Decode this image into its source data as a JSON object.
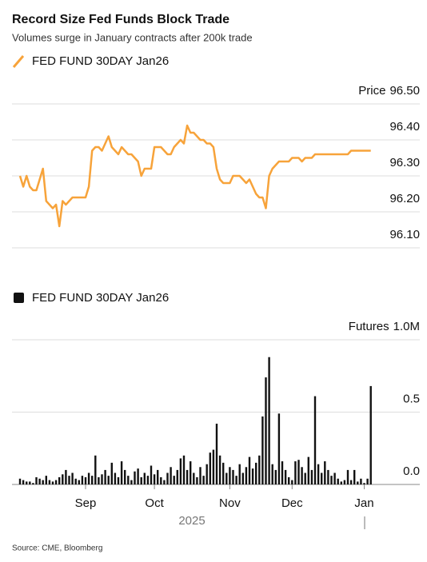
{
  "title": "Record Size Fed Funds Block Trade",
  "subtitle": "Volumes surge in January contracts after 200k trade",
  "source": "Source: CME, Bloomberg",
  "year_label": "2025",
  "chart_data": [
    {
      "type": "line",
      "y_label": "Price",
      "ylim": [
        96.1,
        96.5
      ],
      "yticks": [
        {
          "value": 96.1,
          "label": "96.10"
        },
        {
          "value": 96.2,
          "label": "96.20"
        },
        {
          "value": 96.3,
          "label": "96.30"
        },
        {
          "value": 96.4,
          "label": "96.40"
        },
        {
          "value": 96.5,
          "label": "96.50"
        }
      ],
      "grid": true,
      "series": [
        {
          "name": "FED FUND 30DAY Jan26",
          "color": "#f7a33a",
          "values": [
            96.3,
            96.27,
            96.3,
            96.27,
            96.26,
            96.26,
            96.29,
            96.32,
            96.23,
            96.22,
            96.21,
            96.22,
            96.16,
            96.23,
            96.22,
            96.23,
            96.24,
            96.24,
            96.24,
            96.24,
            96.24,
            96.27,
            96.37,
            96.38,
            96.38,
            96.37,
            96.39,
            96.41,
            96.38,
            96.37,
            96.36,
            96.38,
            96.37,
            96.36,
            96.36,
            96.35,
            96.34,
            96.3,
            96.32,
            96.32,
            96.32,
            96.38,
            96.38,
            96.38,
            96.37,
            96.36,
            96.36,
            96.38,
            96.39,
            96.4,
            96.39,
            96.44,
            96.42,
            96.42,
            96.41,
            96.4,
            96.4,
            96.39,
            96.39,
            96.38,
            96.32,
            96.29,
            96.28,
            96.28,
            96.28,
            96.3,
            96.3,
            96.3,
            96.29,
            96.28,
            96.29,
            96.27,
            96.25,
            96.24,
            96.24,
            96.21,
            96.3,
            96.32,
            96.33,
            96.34,
            96.34,
            96.34,
            96.34,
            96.35,
            96.35,
            96.35,
            96.34,
            96.35,
            96.35,
            96.35,
            96.36,
            96.36,
            96.36,
            96.36,
            96.36,
            96.36,
            96.36,
            96.36,
            96.36,
            96.36,
            96.36,
            96.37,
            96.37,
            96.37,
            96.37,
            96.37,
            96.37,
            96.37
          ]
        }
      ]
    },
    {
      "type": "bar",
      "y_label": "Futures",
      "ylim": [
        0,
        1
      ],
      "yticks": [
        {
          "value": 0,
          "label": "0.0"
        },
        0.5,
        {
          "value": 1,
          "label": "1.0M"
        }
      ],
      "grid": true,
      "categories": [
        null,
        null,
        null,
        null,
        null,
        null,
        null,
        null,
        null,
        null,
        null,
        null,
        null,
        null,
        null,
        null,
        null,
        null,
        null,
        null,
        "Sep",
        null,
        null,
        null,
        null,
        null,
        null,
        null,
        null,
        null,
        null,
        null,
        null,
        null,
        null,
        null,
        null,
        null,
        null,
        null,
        null,
        "Oct",
        null,
        null,
        null,
        null,
        null,
        null,
        null,
        null,
        null,
        null,
        null,
        null,
        null,
        null,
        null,
        null,
        null,
        null,
        null,
        null,
        null,
        null,
        "Nov",
        null,
        null,
        null,
        null,
        null,
        null,
        null,
        null,
        null,
        null,
        null,
        null,
        null,
        null,
        null,
        null,
        null,
        null,
        "Dec",
        null,
        null,
        null,
        null,
        null,
        null,
        null,
        null,
        null,
        null,
        null,
        null,
        null,
        null,
        null,
        null,
        null,
        null,
        null,
        null,
        null,
        "Jan",
        null,
        null
      ],
      "series": [
        {
          "name": "FED FUND 30DAY Jan26",
          "color": "#111111",
          "values": [
            0.04,
            0.03,
            0.02,
            0.02,
            0.01,
            0.05,
            0.04,
            0.03,
            0.06,
            0.03,
            0.02,
            0.03,
            0.05,
            0.07,
            0.1,
            0.06,
            0.08,
            0.04,
            0.03,
            0.06,
            0.05,
            0.08,
            0.06,
            0.2,
            0.05,
            0.07,
            0.1,
            0.06,
            0.15,
            0.08,
            0.05,
            0.16,
            0.1,
            0.06,
            0.03,
            0.09,
            0.11,
            0.05,
            0.08,
            0.06,
            0.13,
            0.07,
            0.1,
            0.05,
            0.03,
            0.08,
            0.12,
            0.06,
            0.1,
            0.18,
            0.2,
            0.1,
            0.16,
            0.08,
            0.05,
            0.12,
            0.06,
            0.14,
            0.22,
            0.24,
            0.42,
            0.2,
            0.15,
            0.08,
            0.12,
            0.1,
            0.06,
            0.14,
            0.08,
            0.12,
            0.19,
            0.11,
            0.15,
            0.2,
            0.47,
            0.74,
            0.88,
            0.14,
            0.1,
            0.49,
            0.16,
            0.1,
            0.05,
            0.03,
            0.16,
            0.17,
            0.12,
            0.08,
            0.19,
            0.1,
            0.61,
            0.14,
            0.08,
            0.16,
            0.1,
            0.06,
            0.08,
            0.04,
            0.02,
            0.03,
            0.1,
            0.03,
            0.1,
            0.02,
            0.04,
            0.01,
            0.04,
            0.68
          ]
        }
      ]
    }
  ]
}
